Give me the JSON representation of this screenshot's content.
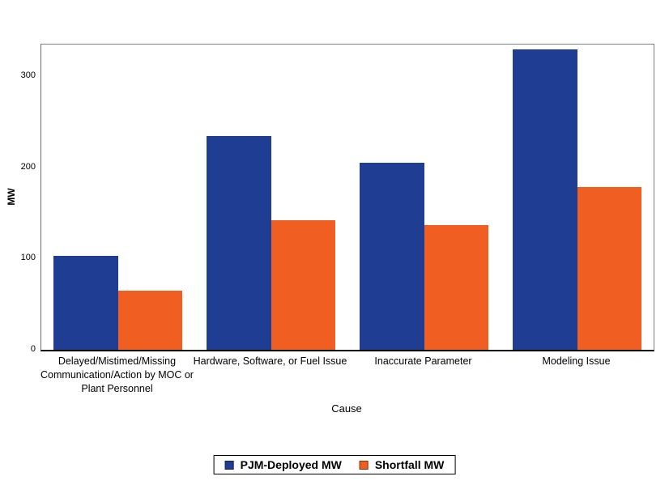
{
  "chart_data": {
    "type": "bar",
    "categories": [
      "Delayed/Mistimed/Missing\nCommunication/Action by MOC or\nPlant Personnel",
      "Hardware, Software, or Fuel Issue",
      "Inaccurate Parameter",
      "Modeling Issue"
    ],
    "series": [
      {
        "name": "PJM-Deployed MW",
        "color": "#203D94",
        "swatch_border": "#101F55",
        "values": [
          103,
          235,
          205,
          330
        ]
      },
      {
        "name": "Shortfall MW",
        "color": "#F15E22",
        "swatch_border": "#8A3410",
        "values": [
          65,
          142,
          137,
          179
        ]
      }
    ],
    "xlabel": "Cause",
    "ylabel": "MW",
    "ylim": [
      0,
      335
    ],
    "yticks": [
      0,
      100,
      200,
      300
    ],
    "grid": false,
    "legend_position": "bottom",
    "plot_border_color": "#7f7f7f",
    "axis_line_color": "#000000",
    "background_color": "#ffffff"
  }
}
